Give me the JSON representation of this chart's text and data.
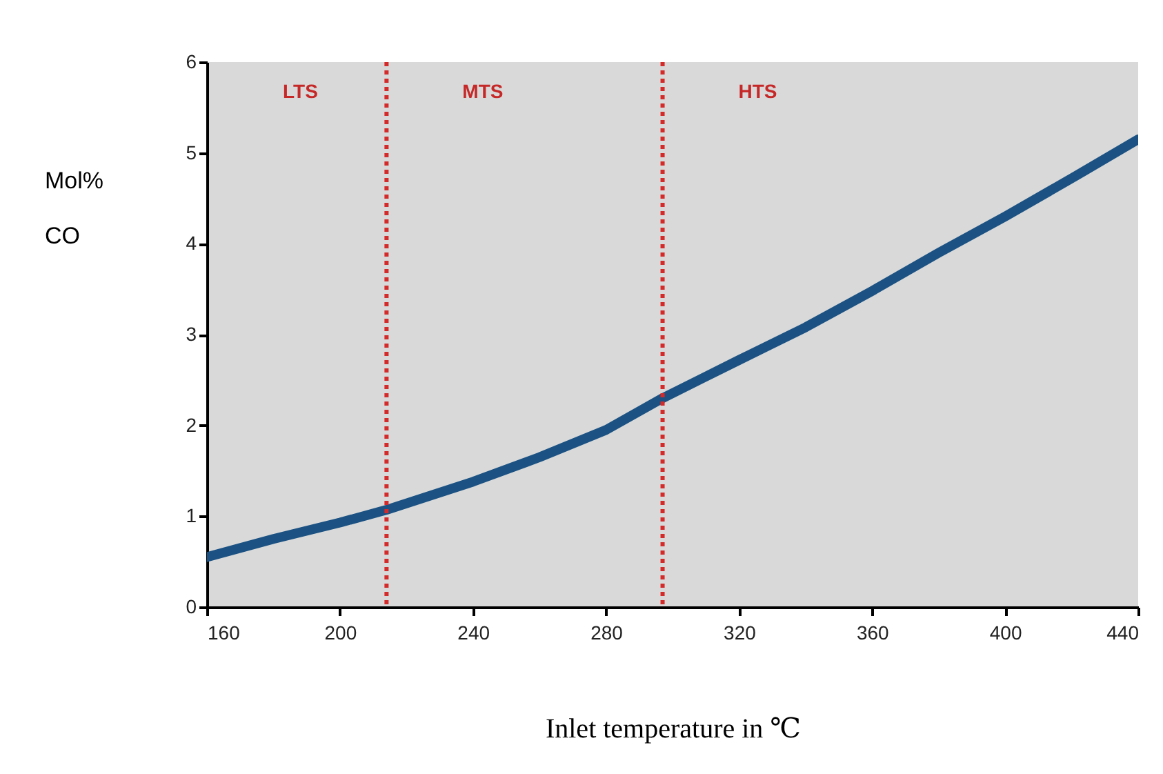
{
  "chart_data": {
    "type": "line",
    "xlabel": "Inlet temperature in ℃",
    "ylabel": "Mol% CO",
    "x": [
      160,
      180,
      200,
      214,
      240,
      260,
      280,
      297,
      320,
      340,
      360,
      380,
      400,
      420,
      440
    ],
    "series": [
      {
        "color": "#1b5283",
        "values": [
          0.55,
          0.75,
          0.93,
          1.07,
          1.38,
          1.65,
          1.95,
          2.3,
          2.72,
          3.08,
          3.48,
          3.9,
          4.3,
          4.72,
          5.15
        ]
      }
    ],
    "xlim": [
      160,
      440
    ],
    "xticks": [
      160,
      200,
      240,
      280,
      320,
      360,
      400,
      440
    ],
    "ylim": [
      0,
      6
    ],
    "yticks": [
      0,
      1,
      2,
      3,
      4,
      5,
      6
    ],
    "ref_lines": [
      {
        "axis": "x",
        "value": 214,
        "color": "#d42a2a",
        "line_style": "dotted"
      },
      {
        "axis": "x",
        "value": 297,
        "color": "#d42a2a",
        "line_style": "dotted"
      }
    ],
    "annotations": [
      "LTS",
      "MTS",
      "HTS"
    ],
    "grid": false,
    "marker": "none",
    "line_style": "solid"
  }
}
